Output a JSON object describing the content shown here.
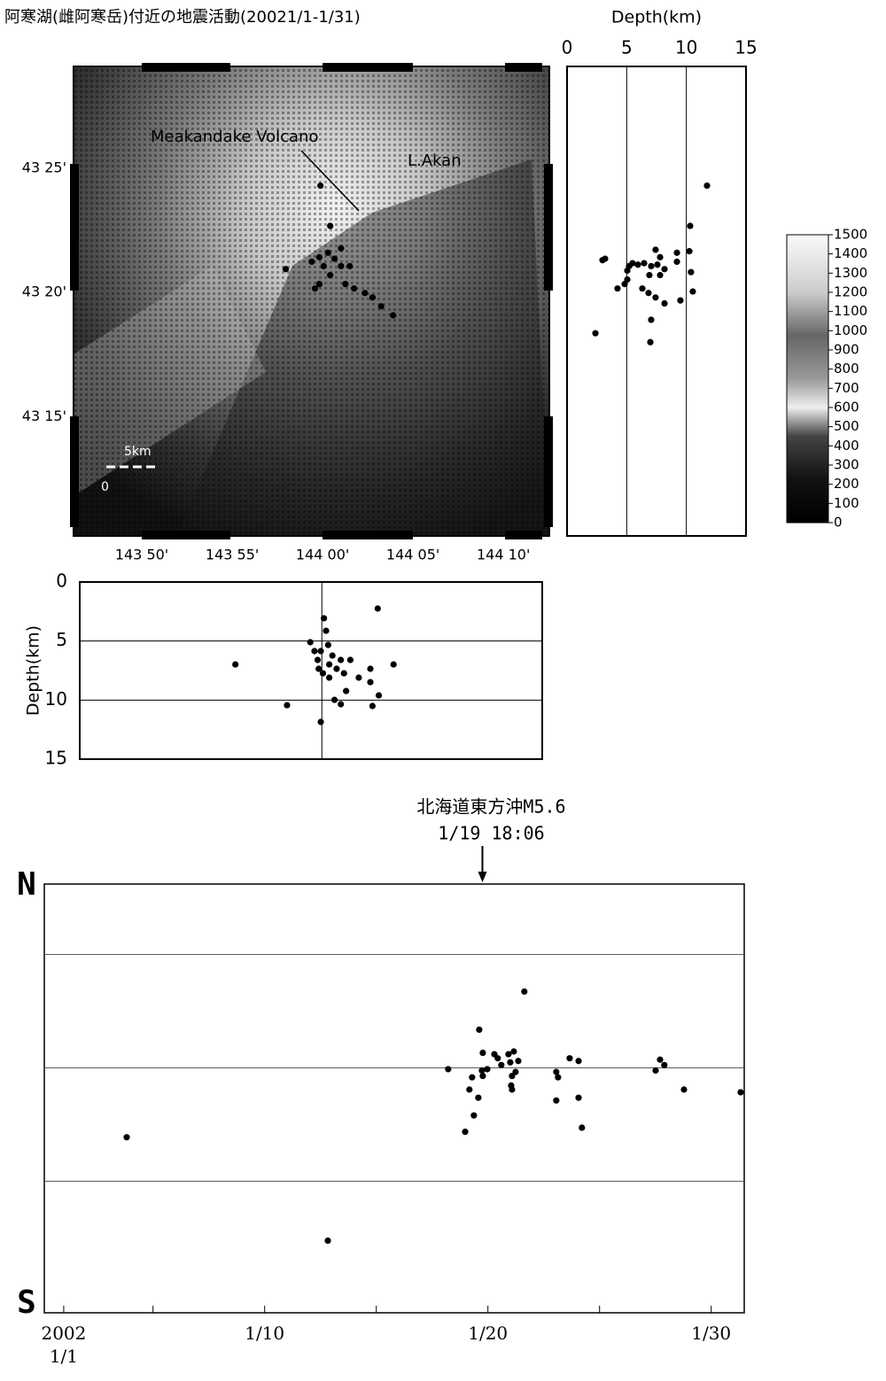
{
  "title": "阿寒湖(雌阿寒岳)付近の地震活動(20021/1-1/31)",
  "chart_data": [
    {
      "type": "scatter",
      "annotations": [
        "Meakandake Volcano",
        "L.Akan"
      ],
      "scale_labels": [
        "0",
        "5km"
      ],
      "xlim": [
        143.7704,
        144.209
      ],
      "ylim": [
        43.17,
        43.485
      ],
      "xticks": [
        {
          "value": 143.8333,
          "label": "143 50'"
        },
        {
          "value": 143.9167,
          "label": "143 55'"
        },
        {
          "value": 144.0,
          "label": "144 00'"
        },
        {
          "value": 144.0833,
          "label": "144 05'"
        },
        {
          "value": 144.1667,
          "label": "144 10'"
        }
      ],
      "yticks": [
        {
          "value": 43.25,
          "label": "43 15'"
        },
        {
          "value": 43.3333,
          "label": "43 20'"
        },
        {
          "value": 43.4167,
          "label": "43 25'"
        }
      ],
      "color": "#000000",
      "x": [
        143.998,
        144.007,
        143.966,
        143.99,
        143.997,
        144.001,
        144.005,
        144.011,
        144.017,
        144.007,
        144.021,
        143.997,
        143.993,
        144.029,
        144.039,
        144.046,
        144.054,
        144.065,
        144.017,
        144.025
      ],
      "y": [
        43.405,
        43.378,
        43.349,
        43.354,
        43.357,
        43.351,
        43.36,
        43.356,
        43.351,
        43.345,
        43.339,
        43.339,
        43.336,
        43.336,
        43.333,
        43.33,
        43.324,
        43.318,
        43.363,
        43.351
      ]
    },
    {
      "type": "scatter",
      "xlabel": "Depth(km)",
      "xlim": [
        0,
        15
      ],
      "ylim": [
        43.17,
        43.485
      ],
      "xticks": [
        0,
        5,
        10,
        15
      ],
      "grid": true,
      "color": "#000000",
      "x": [
        11.73,
        10.32,
        10.25,
        9.21,
        9.21,
        7.42,
        7.8,
        7.57,
        7.05,
        6.46,
        5.94,
        5.49,
        5.2,
        5.05,
        5.05,
        4.83,
        4.23,
        2.97,
        3.19,
        2.38,
        6.98,
        7.05,
        6.31,
        6.83,
        7.42,
        8.17,
        9.5,
        10.54,
        10.39,
        8.17,
        7.8,
        6.9
      ],
      "y": [
        43.405,
        43.378,
        43.361,
        43.36,
        43.354,
        43.362,
        43.357,
        43.352,
        43.351,
        43.353,
        43.352,
        43.353,
        43.351,
        43.348,
        43.342,
        43.339,
        43.336,
        43.355,
        43.356,
        43.306,
        43.3,
        43.315,
        43.336,
        43.333,
        43.33,
        43.326,
        43.328,
        43.334,
        43.347,
        43.349,
        43.345,
        43.345
      ]
    },
    {
      "type": "colorbar",
      "clim": [
        0,
        1500
      ],
      "ticks": [
        0,
        100,
        200,
        300,
        400,
        500,
        600,
        700,
        800,
        900,
        1000,
        1100,
        1200,
        1300,
        1400,
        1500
      ]
    },
    {
      "type": "scatter",
      "ylabel": "Depth(km)",
      "xlim": [
        143.7704,
        144.209
      ],
      "ylim": [
        0,
        15
      ],
      "y_inverted": true,
      "yticks": [
        0,
        5,
        10,
        15
      ],
      "xgrid": [
        144.0
      ],
      "grid": true,
      "color": "#000000",
      "x": [
        143.918,
        143.967,
        143.999,
        144.002,
        144.004,
        143.989,
        143.993,
        143.996,
        143.997,
        144.001,
        144.006,
        144.01,
        144.007,
        144.014,
        144.018,
        144.021,
        144.027,
        144.023,
        144.012,
        144.018,
        144.035,
        144.046,
        144.046,
        144.048,
        144.054,
        144.068,
        144.053,
        143.999,
        144.007
      ],
      "y": [
        6.98,
        10.43,
        11.85,
        3.07,
        4.13,
        5.1,
        5.85,
        6.6,
        7.35,
        7.73,
        5.33,
        6.23,
        6.98,
        7.35,
        6.6,
        7.73,
        6.6,
        9.23,
        9.98,
        10.35,
        8.1,
        7.35,
        8.48,
        10.5,
        9.6,
        6.98,
        2.25,
        5.85,
        8.1
      ]
    },
    {
      "type": "scatter",
      "top_label": "N",
      "bottom_label": "S",
      "annotation": {
        "lines": [
          "北海道東方沖M5.6",
          "1/19 18:06"
        ],
        "x": 19.754
      },
      "xlim": [
        0.13,
        31.48
      ],
      "ylim": [
        43.17,
        43.485
      ],
      "xticks": [
        {
          "value": 1,
          "label": "2002\n1/1"
        },
        {
          "value": 10,
          "label": "1/10"
        },
        {
          "value": 20,
          "label": "1/20"
        },
        {
          "value": 30,
          "label": "1/30"
        }
      ],
      "xminor": [
        5,
        15,
        25
      ],
      "ygrid": [
        43.2667,
        43.35,
        43.4333
      ],
      "color": "#000000",
      "x": [
        3.82,
        12.83,
        18.22,
        18.98,
        19.17,
        19.29,
        19.37,
        19.57,
        19.61,
        19.73,
        19.77,
        19.97,
        20.29,
        20.44,
        20.6,
        20.92,
        21.0,
        21.04,
        21.08,
        21.16,
        21.24,
        21.36,
        21.63,
        23.06,
        23.14,
        23.06,
        23.66,
        24.06,
        24.06,
        24.21,
        27.51,
        27.71,
        27.9,
        28.78,
        31.32,
        19.77,
        21.08
      ],
      "y": [
        43.299,
        43.223,
        43.349,
        43.303,
        43.334,
        43.343,
        43.315,
        43.328,
        43.378,
        43.348,
        43.361,
        43.349,
        43.36,
        43.357,
        43.352,
        43.36,
        43.354,
        43.337,
        43.334,
        43.362,
        43.347,
        43.355,
        43.406,
        43.347,
        43.343,
        43.326,
        43.357,
        43.355,
        43.328,
        43.306,
        43.348,
        43.356,
        43.352,
        43.334,
        43.332,
        43.344,
        43.344
      ]
    }
  ]
}
